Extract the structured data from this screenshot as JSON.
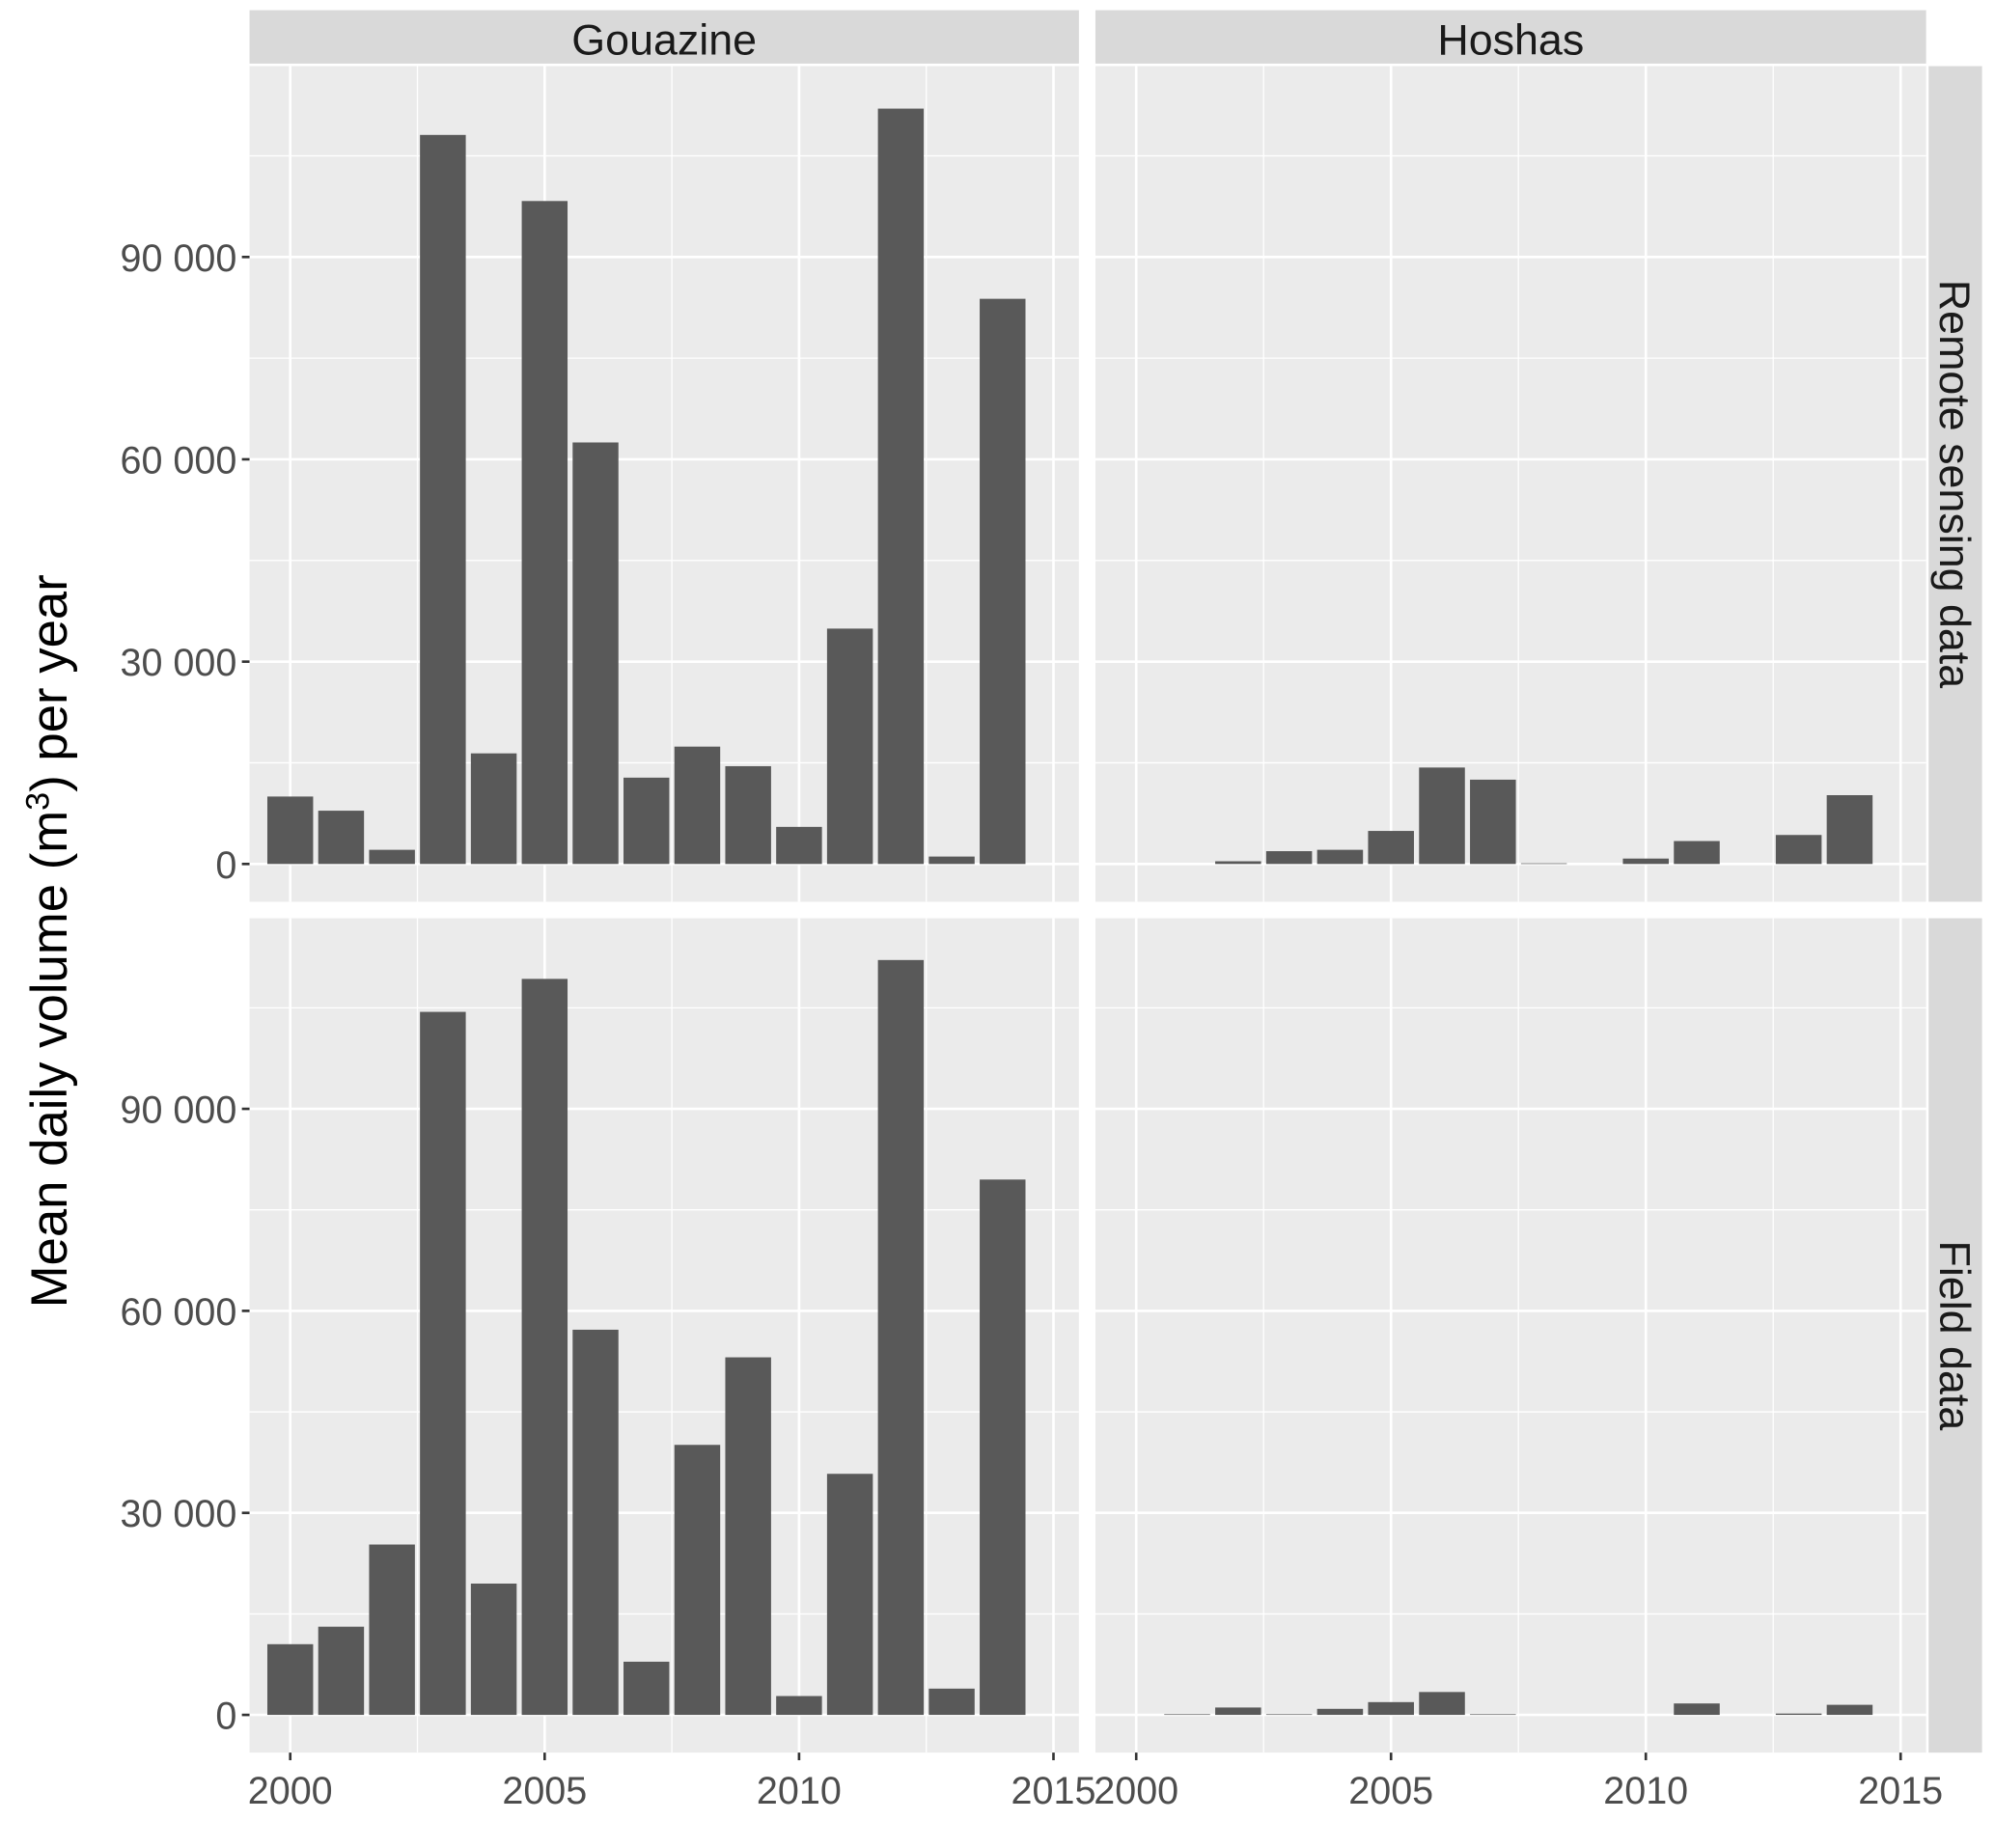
{
  "chart_data": {
    "type": "bar",
    "ylabel_main": "Mean daily volume (m",
    "ylabel_sup": "3",
    "ylabel_end": ") per year",
    "xlabel": "",
    "x": [
      2000,
      2001,
      2002,
      2003,
      2004,
      2005,
      2006,
      2007,
      2008,
      2009,
      2010,
      2011,
      2012,
      2013,
      2014
    ],
    "xticks": [
      "2000",
      "2005",
      "2010",
      "2015"
    ],
    "xtick_values": [
      2000,
      2005,
      2010,
      2015
    ],
    "yticks": [
      "0",
      "30 000",
      "60 000",
      "90 000"
    ],
    "ytick_values": [
      0,
      30000,
      60000,
      90000
    ],
    "xlim": [
      1999.2,
      2015.5
    ],
    "ylim": [
      -5600,
      118300
    ],
    "bar_color": "#595959",
    "panel_bg": "#ebebeb",
    "strip_bg": "#d9d9d9",
    "columns": [
      "Gouazine",
      "Hoshas"
    ],
    "rows": [
      "Remote sensing data",
      "Field data"
    ],
    "panels": [
      {
        "row": 0,
        "col": 0,
        "values": [
          10000,
          7900,
          2100,
          108100,
          16400,
          98300,
          62500,
          12800,
          17400,
          14500,
          5500,
          34900,
          112000,
          1100,
          83800
        ]
      },
      {
        "row": 0,
        "col": 1,
        "values": [
          0,
          0,
          400,
          1900,
          2100,
          4900,
          14300,
          12500,
          100,
          0,
          800,
          3400,
          0,
          4300,
          10200
        ]
      },
      {
        "row": 1,
        "col": 0,
        "values": [
          10500,
          13100,
          25300,
          104400,
          19500,
          109300,
          57200,
          7900,
          40100,
          53100,
          2800,
          35800,
          112100,
          3900,
          79500
        ]
      },
      {
        "row": 1,
        "col": 1,
        "values": [
          0,
          100,
          1100,
          100,
          900,
          1900,
          3400,
          100,
          0,
          0,
          0,
          1700,
          0,
          200,
          1500
        ]
      }
    ]
  }
}
